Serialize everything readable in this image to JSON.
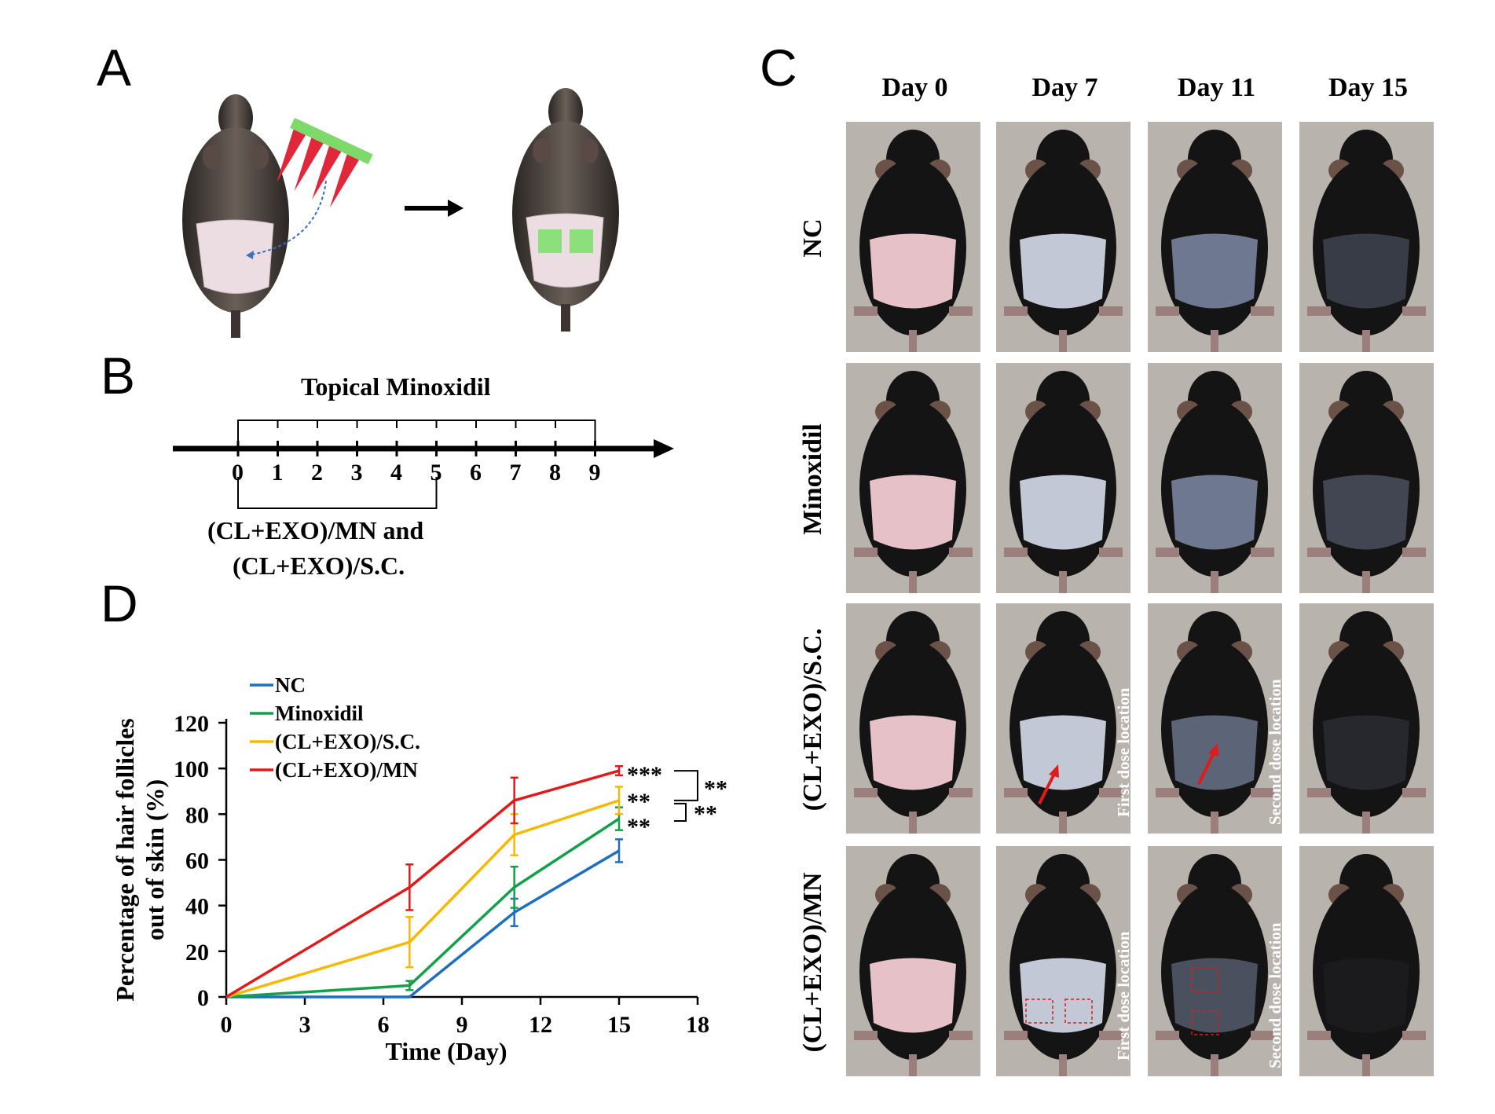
{
  "panels": {
    "a": "A",
    "b": "B",
    "c": "C",
    "d": "D"
  },
  "timeline": {
    "top_label": "Topical Minoxidil",
    "ticks": [
      "0",
      "1",
      "2",
      "3",
      "4",
      "5",
      "6",
      "7",
      "8",
      "9"
    ],
    "bottom_label_line1": "(CL+EXO)/MN and",
    "bottom_label_line2": "(CL+EXO)/S.C."
  },
  "photo_grid": {
    "days": [
      "Day 0",
      "Day 7",
      "Day 11",
      "Day 15"
    ],
    "groups": [
      "NC",
      "Minoxidil",
      "(CL+EXO)/S.C.",
      "(CL+EXO)/MN"
    ],
    "annotations": {
      "first_dose": "First dose location",
      "second_dose": "Second dose location"
    },
    "colors": {
      "background": "#b9b3ae",
      "fur": "#141414",
      "shaved_skin_day0": "#e6c2c8",
      "regrowth": "#6e7890",
      "marker": "#e01b1b"
    }
  },
  "chart_data": {
    "type": "line",
    "xlabel": "Time (Day)",
    "ylabel": "Percentage of hair follicles out of skin (%)",
    "xlim": [
      0,
      18
    ],
    "ylim": [
      0,
      120
    ],
    "xticks": [
      0,
      3,
      6,
      9,
      12,
      15,
      18
    ],
    "yticks": [
      0,
      20,
      40,
      60,
      80,
      100,
      120
    ],
    "x": [
      0,
      7,
      11,
      15
    ],
    "legend_position": "top-left",
    "series": [
      {
        "name": "NC",
        "color": "#1f6fc1",
        "values": [
          0,
          0,
          37,
          64
        ],
        "errors": [
          0,
          0,
          6,
          5
        ]
      },
      {
        "name": "Minoxidil",
        "color": "#12a14a",
        "values": [
          0,
          5,
          48,
          78
        ],
        "errors": [
          0,
          2,
          9,
          5
        ]
      },
      {
        "name": "(CL+EXO)/S.C.",
        "color": "#f6b800",
        "values": [
          0,
          24,
          71,
          86
        ],
        "errors": [
          0,
          11,
          9,
          6
        ]
      },
      {
        "name": "(CL+EXO)/MN",
        "color": "#e01b1b",
        "values": [
          0,
          48,
          86,
          99
        ],
        "errors": [
          0,
          10,
          10,
          2
        ]
      }
    ],
    "significance": {
      "mn_vs_others": "***",
      "sc": "**",
      "minox": "**",
      "bracket_upper": "**",
      "bracket_lower": "**"
    }
  }
}
